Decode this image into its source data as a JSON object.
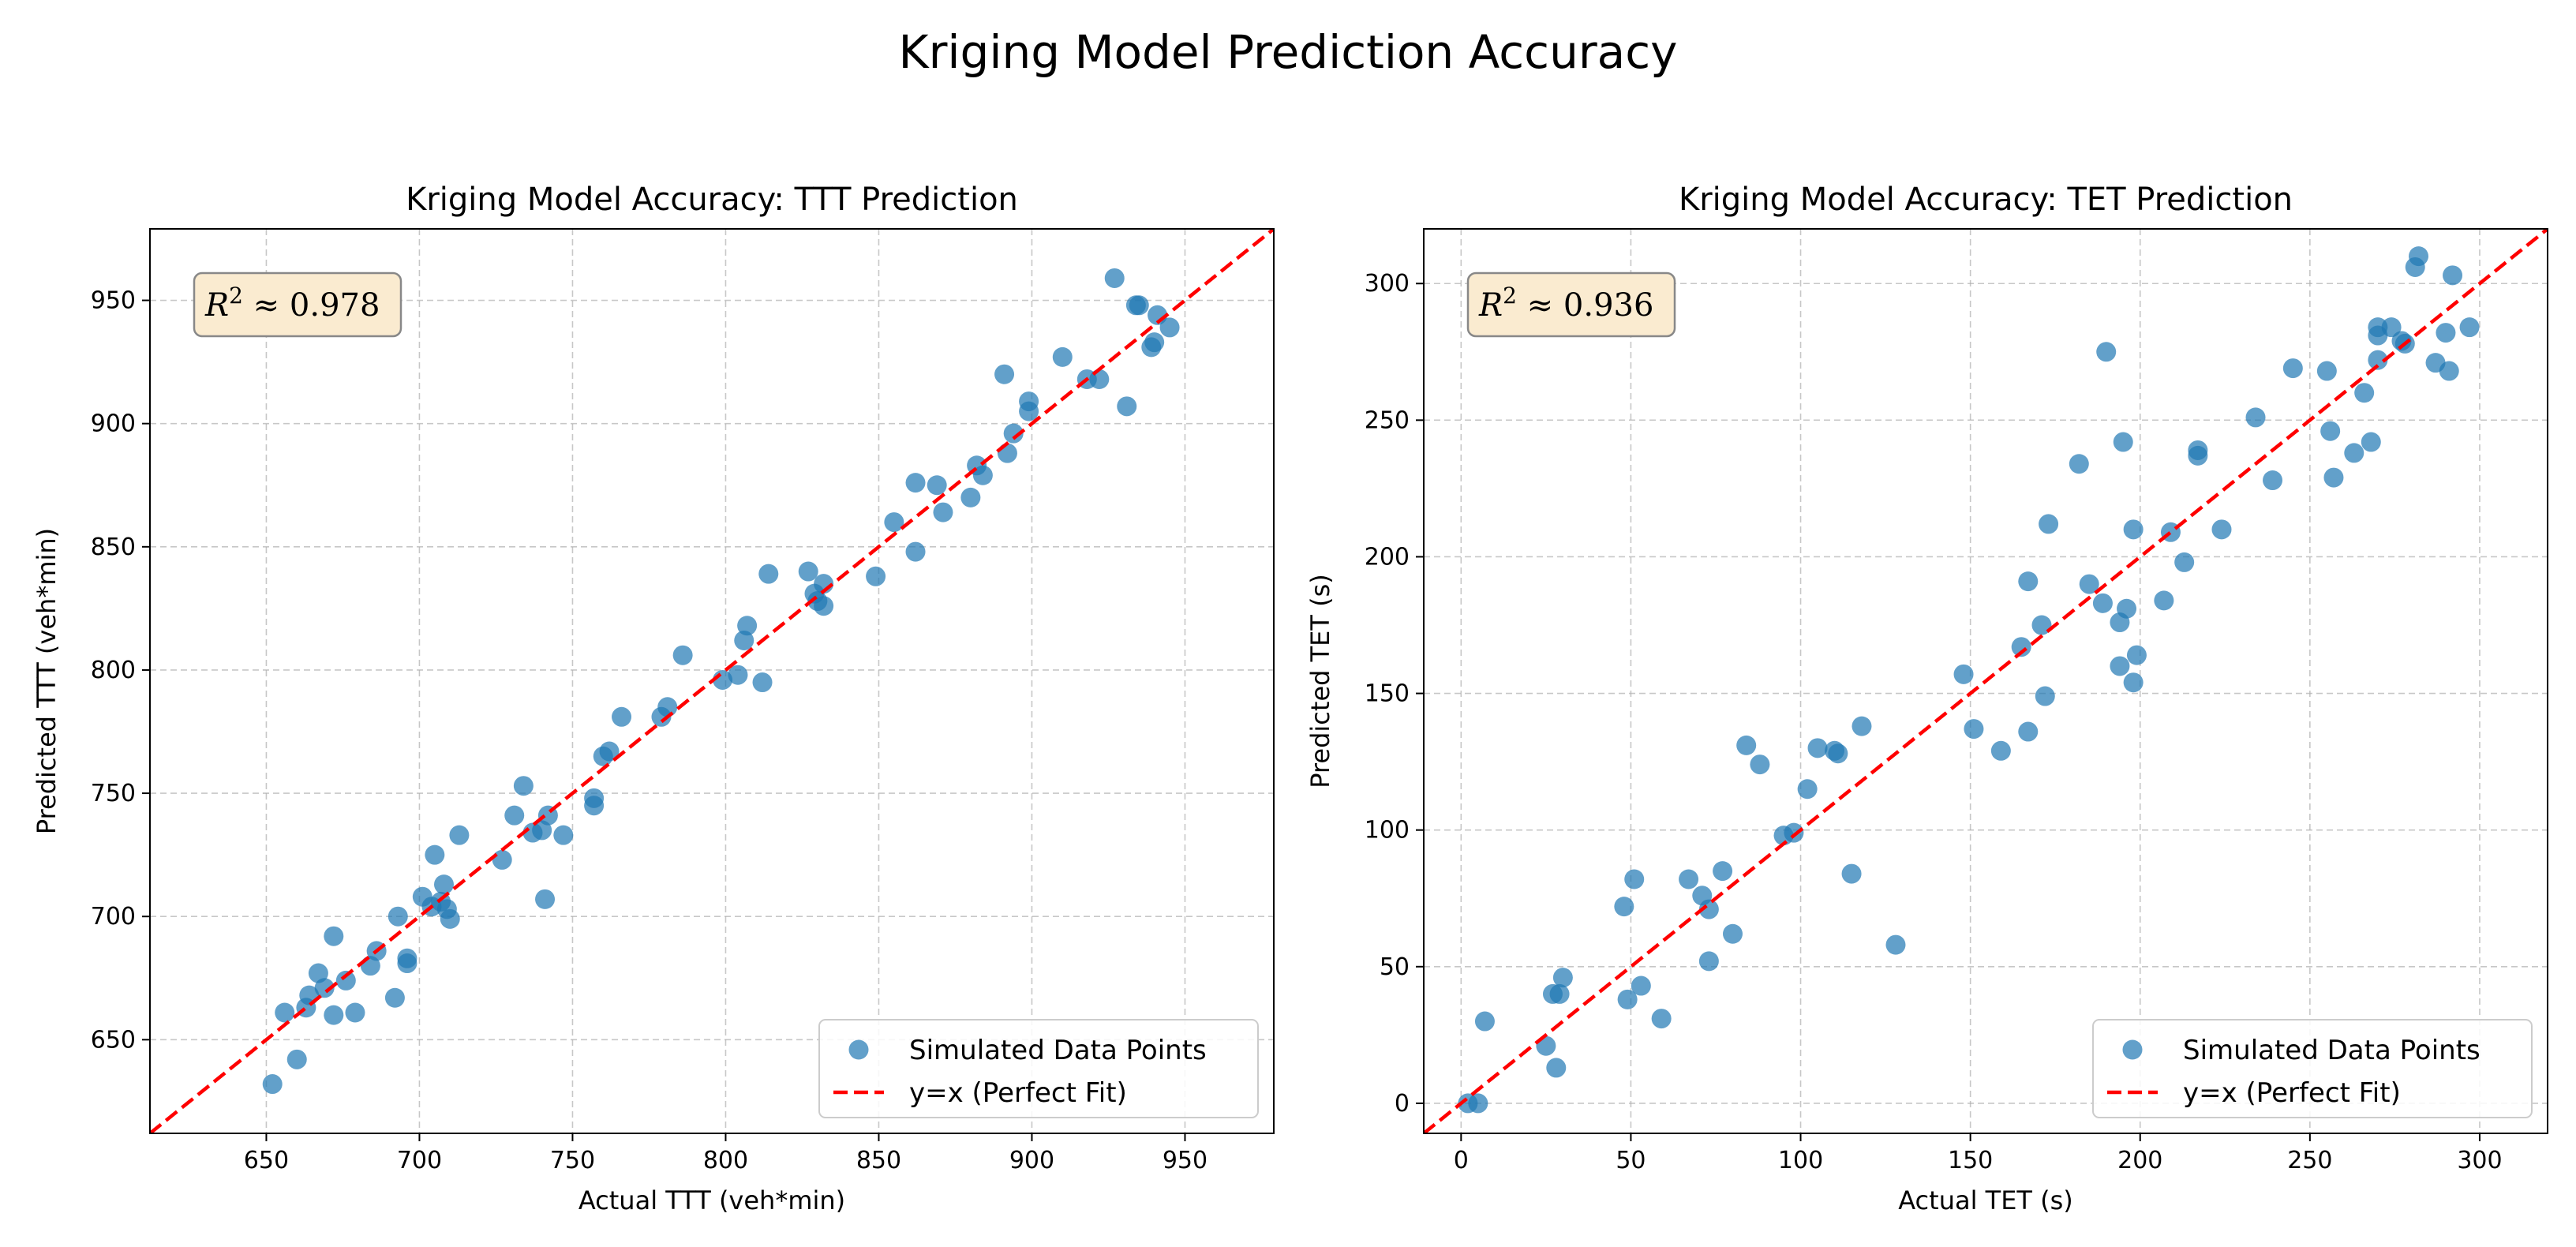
{
  "figure_title": "Kriging Model Prediction Accuracy",
  "colors": {
    "points": "#1f77b4",
    "fit_line": "#ff0000",
    "annotation_bg": "#faebd0",
    "annotation_border": "#888888"
  },
  "chart_data": [
    {
      "type": "scatter",
      "title": "Kriging Model Accuracy: TTT Prediction",
      "xlabel": "Actual TTT (veh*min)",
      "ylabel": "Predicted TTT (veh*min)",
      "xlim": [
        612,
        979
      ],
      "ylim": [
        612,
        979
      ],
      "xticks": [
        650,
        700,
        750,
        800,
        850,
        900,
        950
      ],
      "yticks": [
        650,
        700,
        750,
        800,
        850,
        900,
        950
      ],
      "annotation": {
        "r2_symbol": "R",
        "r2_sup": "2",
        "r2_approx": " ≈ ",
        "r2_value": "0.978",
        "position": "top-left"
      },
      "legend": {
        "position": "lower-right",
        "entries": [
          {
            "label": "Simulated Data Points",
            "kind": "marker"
          },
          {
            "label": "y=x (Perfect Fit)",
            "kind": "dashed-line"
          }
        ]
      },
      "grid": true,
      "series": [
        {
          "name": "Simulated Data Points",
          "points": [
            [
              652,
              632
            ],
            [
              656,
              661
            ],
            [
              660,
              642
            ],
            [
              663,
              663
            ],
            [
              664,
              668
            ],
            [
              667,
              677
            ],
            [
              669,
              671
            ],
            [
              672,
              692
            ],
            [
              672,
              660
            ],
            [
              676,
              674
            ],
            [
              679,
              661
            ],
            [
              684,
              680
            ],
            [
              686,
              686
            ],
            [
              692,
              667
            ],
            [
              693,
              700
            ],
            [
              696,
              681
            ],
            [
              696,
              683
            ],
            [
              701,
              708
            ],
            [
              704,
              704
            ],
            [
              705,
              725
            ],
            [
              707,
              706
            ],
            [
              708,
              713
            ],
            [
              709,
              703
            ],
            [
              710,
              699
            ],
            [
              713,
              733
            ],
            [
              727,
              723
            ],
            [
              731,
              741
            ],
            [
              734,
              753
            ],
            [
              737,
              734
            ],
            [
              740,
              735
            ],
            [
              741,
              707
            ],
            [
              742,
              741
            ],
            [
              747,
              733
            ],
            [
              757,
              745
            ],
            [
              757,
              748
            ],
            [
              760,
              765
            ],
            [
              762,
              767
            ],
            [
              766,
              781
            ],
            [
              779,
              781
            ],
            [
              781,
              785
            ],
            [
              786,
              806
            ],
            [
              799,
              796
            ],
            [
              804,
              798
            ],
            [
              806,
              812
            ],
            [
              807,
              818
            ],
            [
              812,
              795
            ],
            [
              814,
              839
            ],
            [
              827,
              840
            ],
            [
              829,
              831
            ],
            [
              830,
              828
            ],
            [
              832,
              826
            ],
            [
              832,
              835
            ],
            [
              849,
              838
            ],
            [
              855,
              860
            ],
            [
              862,
              876
            ],
            [
              862,
              848
            ],
            [
              869,
              875
            ],
            [
              871,
              864
            ],
            [
              880,
              870
            ],
            [
              882,
              883
            ],
            [
              884,
              879
            ],
            [
              891,
              920
            ],
            [
              892,
              888
            ],
            [
              894,
              896
            ],
            [
              899,
              909
            ],
            [
              899,
              905
            ],
            [
              910,
              927
            ],
            [
              918,
              918
            ],
            [
              922,
              918
            ],
            [
              927,
              959
            ],
            [
              931,
              907
            ],
            [
              934,
              948
            ],
            [
              935,
              948
            ],
            [
              939,
              931
            ],
            [
              940,
              933
            ],
            [
              941,
              944
            ],
            [
              945,
              939
            ]
          ]
        }
      ]
    },
    {
      "type": "scatter",
      "title": "Kriging Model Accuracy: TET Prediction",
      "xlabel": "Actual TET (s)",
      "ylabel": "Predicted TET (s)",
      "xlim": [
        -11,
        320
      ],
      "ylim": [
        -11,
        320
      ],
      "xticks": [
        0,
        50,
        100,
        150,
        200,
        250,
        300
      ],
      "yticks": [
        0,
        50,
        100,
        150,
        200,
        250,
        300
      ],
      "annotation": {
        "r2_symbol": "R",
        "r2_sup": "2",
        "r2_approx": " ≈ ",
        "r2_value": "0.936",
        "position": "top-left"
      },
      "legend": {
        "position": "lower-right",
        "entries": [
          {
            "label": "Simulated Data Points",
            "kind": "marker"
          },
          {
            "label": "y=x (Perfect Fit)",
            "kind": "dashed-line"
          }
        ]
      },
      "grid": true,
      "series": [
        {
          "name": "Simulated Data Points",
          "points": [
            [
              2,
              0
            ],
            [
              5,
              0
            ],
            [
              7,
              30
            ],
            [
              25,
              21
            ],
            [
              27,
              40
            ],
            [
              29,
              40
            ],
            [
              28,
              13
            ],
            [
              30,
              46
            ],
            [
              48,
              72
            ],
            [
              49,
              38
            ],
            [
              51,
              82
            ],
            [
              53,
              43
            ],
            [
              59,
              31
            ],
            [
              67,
              82
            ],
            [
              71,
              76
            ],
            [
              73,
              71
            ],
            [
              73,
              52
            ],
            [
              77,
              85
            ],
            [
              80,
              62
            ],
            [
              84,
              131
            ],
            [
              88,
              124
            ],
            [
              95,
              98
            ],
            [
              98,
              99
            ],
            [
              102,
              115
            ],
            [
              105,
              130
            ],
            [
              110,
              129
            ],
            [
              111,
              128
            ],
            [
              115,
              84
            ],
            [
              118,
              138
            ],
            [
              128,
              58
            ],
            [
              148,
              157
            ],
            [
              151,
              137
            ],
            [
              159,
              129
            ],
            [
              165,
              167
            ],
            [
              167,
              191
            ],
            [
              167,
              136
            ],
            [
              171,
              175
            ],
            [
              172,
              149
            ],
            [
              173,
              212
            ],
            [
              182,
              234
            ],
            [
              185,
              190
            ],
            [
              189,
              183
            ],
            [
              190,
              275
            ],
            [
              194,
              176
            ],
            [
              194,
              160
            ],
            [
              195,
              242
            ],
            [
              196,
              181
            ],
            [
              198,
              154
            ],
            [
              198,
              210
            ],
            [
              199,
              164
            ],
            [
              207,
              184
            ],
            [
              209,
              209
            ],
            [
              213,
              198
            ],
            [
              217,
              239
            ],
            [
              217,
              237
            ],
            [
              224,
              210
            ],
            [
              234,
              251
            ],
            [
              239,
              228
            ],
            [
              245,
              269
            ],
            [
              255,
              268
            ],
            [
              256,
              246
            ],
            [
              257,
              229
            ],
            [
              263,
              238
            ],
            [
              266,
              260
            ],
            [
              268,
              242
            ],
            [
              270,
              284
            ],
            [
              270,
              281
            ],
            [
              270,
              272
            ],
            [
              274,
              284
            ],
            [
              277,
              279
            ],
            [
              278,
              278
            ],
            [
              281,
              306
            ],
            [
              282,
              310
            ],
            [
              287,
              271
            ],
            [
              290,
              282
            ],
            [
              291,
              268
            ],
            [
              292,
              303
            ],
            [
              297,
              284
            ]
          ]
        }
      ]
    }
  ]
}
